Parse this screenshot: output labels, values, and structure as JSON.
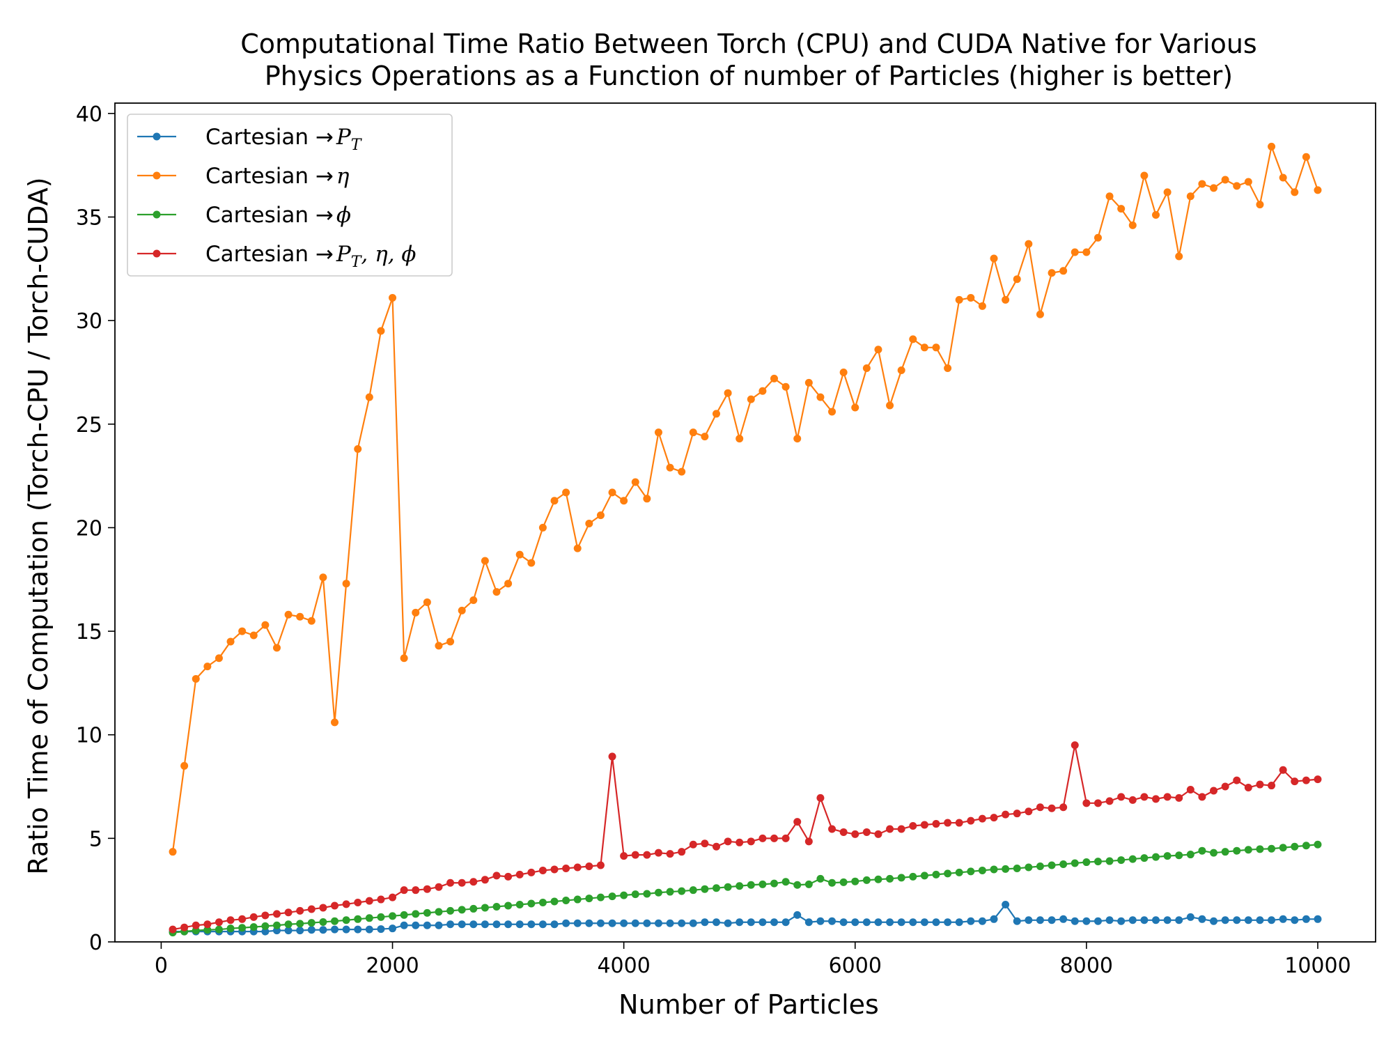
{
  "chart_data": {
    "type": "line",
    "title": [
      "Computational Time Ratio Between Torch (CPU) and CUDA Native for Various",
      "Physics Operations as a Function of number of Particles (higher is better)"
    ],
    "xlabel": "Number of Particles",
    "ylabel": "Ratio Time of Computation (Torch-CPU / Torch-CUDA)",
    "xlim": [
      -400,
      10500
    ],
    "ylim": [
      0,
      40.5
    ],
    "xticks": [
      0,
      2000,
      4000,
      6000,
      8000,
      10000
    ],
    "yticks": [
      0,
      5,
      10,
      15,
      20,
      25,
      30,
      35,
      40
    ],
    "grid": false,
    "legend_position": "top-left",
    "x": [
      100,
      200,
      300,
      400,
      500,
      600,
      700,
      800,
      900,
      1000,
      1100,
      1200,
      1300,
      1400,
      1500,
      1600,
      1700,
      1800,
      1900,
      2000,
      2100,
      2200,
      2300,
      2400,
      2500,
      2600,
      2700,
      2800,
      2900,
      3000,
      3100,
      3200,
      3300,
      3400,
      3500,
      3600,
      3700,
      3800,
      3900,
      4000,
      4100,
      4200,
      4300,
      4400,
      4500,
      4600,
      4700,
      4800,
      4900,
      5000,
      5100,
      5200,
      5300,
      5400,
      5500,
      5600,
      5700,
      5800,
      5900,
      6000,
      6100,
      6200,
      6300,
      6400,
      6500,
      6600,
      6700,
      6800,
      6900,
      7000,
      7100,
      7200,
      7300,
      7400,
      7500,
      7600,
      7700,
      7800,
      7900,
      8000,
      8100,
      8200,
      8300,
      8400,
      8500,
      8600,
      8700,
      8800,
      8900,
      9000,
      9100,
      9200,
      9300,
      9400,
      9500,
      9600,
      9700,
      9800,
      9900,
      10000
    ],
    "series": [
      {
        "name": "Cartesian → P_T",
        "legend": {
          "prefix": "Cartesian ",
          "arrow": "→",
          "math": "P",
          "sub": "T"
        },
        "color": "#1f77b4",
        "values": [
          0.5,
          0.5,
          0.5,
          0.5,
          0.5,
          0.5,
          0.5,
          0.5,
          0.5,
          0.55,
          0.55,
          0.55,
          0.58,
          0.58,
          0.6,
          0.6,
          0.6,
          0.6,
          0.62,
          0.65,
          0.8,
          0.8,
          0.8,
          0.8,
          0.85,
          0.85,
          0.85,
          0.85,
          0.85,
          0.85,
          0.85,
          0.85,
          0.85,
          0.85,
          0.9,
          0.9,
          0.9,
          0.9,
          0.9,
          0.9,
          0.9,
          0.9,
          0.9,
          0.9,
          0.9,
          0.9,
          0.95,
          0.95,
          0.9,
          0.95,
          0.95,
          0.95,
          0.95,
          0.95,
          1.3,
          0.95,
          1.0,
          1.0,
          0.95,
          0.95,
          0.95,
          0.95,
          0.95,
          0.95,
          0.95,
          0.95,
          0.95,
          0.95,
          0.95,
          1.0,
          1.0,
          1.1,
          1.8,
          1.0,
          1.05,
          1.05,
          1.05,
          1.1,
          1.0,
          1.0,
          1.0,
          1.05,
          1.0,
          1.05,
          1.05,
          1.05,
          1.05,
          1.05,
          1.2,
          1.1,
          1.0,
          1.05,
          1.05,
          1.05,
          1.05,
          1.05,
          1.1,
          1.05,
          1.1,
          1.1
        ]
      },
      {
        "name": "Cartesian → η",
        "legend": {
          "prefix": "Cartesian ",
          "arrow": "→",
          "math": "η",
          "sub": ""
        },
        "color": "#ff7f0e",
        "values": [
          4.35,
          8.5,
          12.7,
          13.3,
          13.7,
          14.5,
          15.0,
          14.8,
          15.3,
          14.2,
          15.8,
          15.7,
          15.5,
          17.6,
          10.6,
          17.3,
          23.8,
          26.3,
          29.5,
          31.1,
          13.7,
          15.9,
          16.4,
          14.3,
          14.5,
          16.0,
          16.5,
          18.4,
          16.9,
          17.3,
          18.7,
          18.3,
          20.0,
          21.3,
          21.7,
          19.0,
          20.2,
          20.6,
          21.7,
          21.3,
          22.2,
          21.4,
          24.6,
          22.9,
          22.7,
          24.6,
          24.4,
          25.5,
          26.5,
          24.3,
          26.2,
          26.6,
          27.2,
          26.8,
          24.3,
          27.0,
          26.3,
          25.6,
          27.5,
          25.8,
          27.7,
          28.6,
          25.9,
          27.6,
          29.1,
          28.7,
          28.7,
          27.7,
          31.0,
          31.1,
          30.7,
          33.0,
          31.0,
          32.0,
          33.7,
          30.3,
          32.3,
          32.4,
          33.3,
          33.3,
          34.0,
          36.0,
          35.4,
          34.6,
          37.0,
          35.1,
          36.2,
          33.1,
          36.0,
          36.6,
          36.4,
          36.8,
          36.5,
          36.7,
          35.6,
          38.4,
          36.9,
          36.2,
          37.9,
          36.3
        ]
      },
      {
        "name": "Cartesian → ϕ",
        "legend": {
          "prefix": "Cartesian ",
          "arrow": "→",
          "math": "ϕ",
          "sub": ""
        },
        "color": "#2ca02c",
        "values": [
          0.45,
          0.5,
          0.55,
          0.58,
          0.6,
          0.65,
          0.68,
          0.72,
          0.76,
          0.8,
          0.85,
          0.88,
          0.92,
          0.96,
          1.0,
          1.05,
          1.1,
          1.15,
          1.2,
          1.25,
          1.3,
          1.35,
          1.4,
          1.45,
          1.5,
          1.55,
          1.6,
          1.65,
          1.7,
          1.75,
          1.8,
          1.85,
          1.9,
          1.95,
          2.0,
          2.05,
          2.1,
          2.15,
          2.2,
          2.25,
          2.3,
          2.32,
          2.38,
          2.42,
          2.45,
          2.5,
          2.55,
          2.6,
          2.65,
          2.7,
          2.75,
          2.78,
          2.82,
          2.9,
          2.75,
          2.78,
          3.05,
          2.85,
          2.88,
          2.92,
          2.98,
          3.02,
          3.05,
          3.1,
          3.15,
          3.2,
          3.25,
          3.3,
          3.35,
          3.4,
          3.45,
          3.5,
          3.52,
          3.55,
          3.6,
          3.65,
          3.7,
          3.75,
          3.8,
          3.85,
          3.88,
          3.9,
          3.95,
          4.0,
          4.05,
          4.1,
          4.15,
          4.18,
          4.22,
          4.4,
          4.3,
          4.35,
          4.4,
          4.45,
          4.48,
          4.5,
          4.55,
          4.6,
          4.65,
          4.7
        ]
      },
      {
        "name": "Cartesian → P_T, η, ϕ",
        "legend": {
          "prefix": "Cartesian ",
          "arrow": "→",
          "math": "P",
          "sub": "T",
          "suffix": ", η, ϕ"
        },
        "color": "#d62728",
        "values": [
          0.6,
          0.7,
          0.8,
          0.85,
          0.95,
          1.05,
          1.1,
          1.2,
          1.28,
          1.35,
          1.42,
          1.5,
          1.58,
          1.65,
          1.75,
          1.82,
          1.9,
          1.98,
          2.05,
          2.15,
          2.5,
          2.5,
          2.55,
          2.65,
          2.85,
          2.85,
          2.9,
          3.0,
          3.2,
          3.15,
          3.25,
          3.35,
          3.45,
          3.5,
          3.55,
          3.6,
          3.65,
          3.7,
          8.95,
          4.15,
          4.2,
          4.2,
          4.3,
          4.25,
          4.35,
          4.7,
          4.75,
          4.6,
          4.85,
          4.8,
          4.85,
          5.0,
          5.0,
          5.0,
          5.8,
          4.85,
          6.95,
          5.45,
          5.3,
          5.2,
          5.3,
          5.2,
          5.45,
          5.45,
          5.6,
          5.65,
          5.7,
          5.75,
          5.75,
          5.85,
          5.95,
          6.0,
          6.15,
          6.2,
          6.3,
          6.5,
          6.45,
          6.5,
          9.5,
          6.7,
          6.7,
          6.8,
          7.0,
          6.85,
          7.0,
          6.9,
          7.0,
          6.95,
          7.35,
          7.0,
          7.3,
          7.5,
          7.8,
          7.45,
          7.6,
          7.55,
          8.3,
          7.75,
          7.8,
          7.85
        ]
      }
    ]
  }
}
